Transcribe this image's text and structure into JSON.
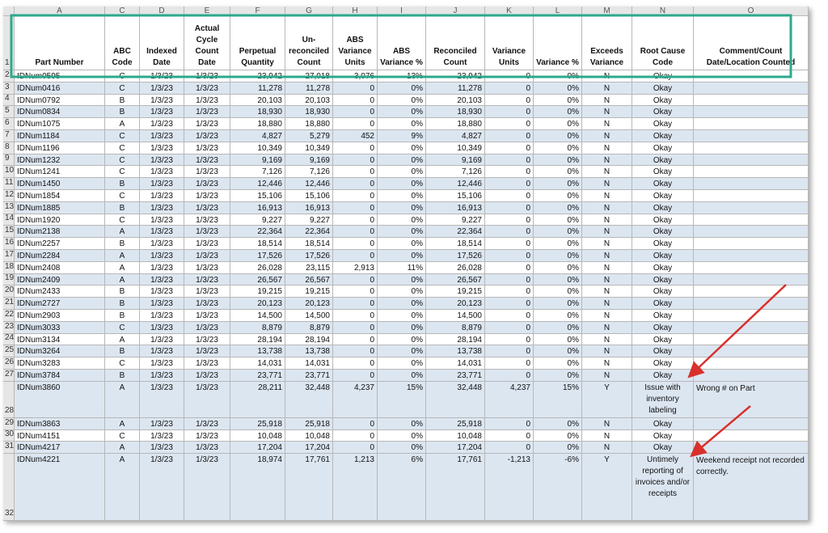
{
  "table": {
    "columns": [
      "A",
      "C",
      "D",
      "E",
      "F",
      "G",
      "H",
      "I",
      "J",
      "K",
      "L",
      "M",
      "N",
      "O"
    ],
    "header_row": "1",
    "header": [
      "Part Number",
      "ABC Code",
      "Indexed Date",
      "Actual Cycle Count Date",
      "Perpetual Quantity",
      "Un-reconciled Count",
      "ABS Variance Units",
      "ABS Variance %",
      "Reconciled Count",
      "Variance Units",
      "Variance %",
      "Exceeds Variance",
      "Root Cause Code",
      "Comment/Count Date/Location Counted"
    ],
    "rows": [
      {
        "n": "2",
        "cells": [
          "IDNum0595",
          "C",
          "1/3/23",
          "1/3/23",
          "23,942",
          "27,018",
          "3,076",
          "13%",
          "23,942",
          "0",
          "0%",
          "N",
          "Okay"
        ]
      },
      {
        "n": "3",
        "cells": [
          "IDNum0416",
          "C",
          "1/3/23",
          "1/3/23",
          "11,278",
          "11,278",
          "0",
          "0%",
          "11,278",
          "0",
          "0%",
          "N",
          "Okay"
        ]
      },
      {
        "n": "4",
        "cells": [
          "IDNum0792",
          "B",
          "1/3/23",
          "1/3/23",
          "20,103",
          "20,103",
          "0",
          "0%",
          "20,103",
          "0",
          "0%",
          "N",
          "Okay"
        ]
      },
      {
        "n": "5",
        "cells": [
          "IDNum0834",
          "B",
          "1/3/23",
          "1/3/23",
          "18,930",
          "18,930",
          "0",
          "0%",
          "18,930",
          "0",
          "0%",
          "N",
          "Okay"
        ]
      },
      {
        "n": "6",
        "cells": [
          "IDNum1075",
          "A",
          "1/3/23",
          "1/3/23",
          "18,880",
          "18,880",
          "0",
          "0%",
          "18,880",
          "0",
          "0%",
          "N",
          "Okay"
        ]
      },
      {
        "n": "7",
        "cells": [
          "IDNum1184",
          "C",
          "1/3/23",
          "1/3/23",
          "4,827",
          "5,279",
          "452",
          "9%",
          "4,827",
          "0",
          "0%",
          "N",
          "Okay"
        ]
      },
      {
        "n": "8",
        "cells": [
          "IDNum1196",
          "C",
          "1/3/23",
          "1/3/23",
          "10,349",
          "10,349",
          "0",
          "0%",
          "10,349",
          "0",
          "0%",
          "N",
          "Okay"
        ]
      },
      {
        "n": "9",
        "cells": [
          "IDNum1232",
          "C",
          "1/3/23",
          "1/3/23",
          "9,169",
          "9,169",
          "0",
          "0%",
          "9,169",
          "0",
          "0%",
          "N",
          "Okay"
        ]
      },
      {
        "n": "10",
        "cells": [
          "IDNum1241",
          "C",
          "1/3/23",
          "1/3/23",
          "7,126",
          "7,126",
          "0",
          "0%",
          "7,126",
          "0",
          "0%",
          "N",
          "Okay"
        ]
      },
      {
        "n": "11",
        "cells": [
          "IDNum1450",
          "B",
          "1/3/23",
          "1/3/23",
          "12,446",
          "12,446",
          "0",
          "0%",
          "12,446",
          "0",
          "0%",
          "N",
          "Okay"
        ]
      },
      {
        "n": "12",
        "cells": [
          "IDNum1854",
          "C",
          "1/3/23",
          "1/3/23",
          "15,106",
          "15,106",
          "0",
          "0%",
          "15,106",
          "0",
          "0%",
          "N",
          "Okay"
        ]
      },
      {
        "n": "13",
        "cells": [
          "IDNum1885",
          "B",
          "1/3/23",
          "1/3/23",
          "16,913",
          "16,913",
          "0",
          "0%",
          "16,913",
          "0",
          "0%",
          "N",
          "Okay"
        ]
      },
      {
        "n": "14",
        "cells": [
          "IDNum1920",
          "C",
          "1/3/23",
          "1/3/23",
          "9,227",
          "9,227",
          "0",
          "0%",
          "9,227",
          "0",
          "0%",
          "N",
          "Okay"
        ]
      },
      {
        "n": "15",
        "cells": [
          "IDNum2138",
          "A",
          "1/3/23",
          "1/3/23",
          "22,364",
          "22,364",
          "0",
          "0%",
          "22,364",
          "0",
          "0%",
          "N",
          "Okay"
        ]
      },
      {
        "n": "16",
        "cells": [
          "IDNum2257",
          "B",
          "1/3/23",
          "1/3/23",
          "18,514",
          "18,514",
          "0",
          "0%",
          "18,514",
          "0",
          "0%",
          "N",
          "Okay"
        ]
      },
      {
        "n": "17",
        "cells": [
          "IDNum2284",
          "A",
          "1/3/23",
          "1/3/23",
          "17,526",
          "17,526",
          "0",
          "0%",
          "17,526",
          "0",
          "0%",
          "N",
          "Okay"
        ]
      },
      {
        "n": "18",
        "cells": [
          "IDNum2408",
          "A",
          "1/3/23",
          "1/3/23",
          "26,028",
          "23,115",
          "2,913",
          "11%",
          "26,028",
          "0",
          "0%",
          "N",
          "Okay"
        ]
      },
      {
        "n": "19",
        "cells": [
          "IDNum2409",
          "A",
          "1/3/23",
          "1/3/23",
          "26,567",
          "26,567",
          "0",
          "0%",
          "26,567",
          "0",
          "0%",
          "N",
          "Okay"
        ]
      },
      {
        "n": "20",
        "cells": [
          "IDNum2433",
          "B",
          "1/3/23",
          "1/3/23",
          "19,215",
          "19,215",
          "0",
          "0%",
          "19,215",
          "0",
          "0%",
          "N",
          "Okay"
        ]
      },
      {
        "n": "21",
        "cells": [
          "IDNum2727",
          "B",
          "1/3/23",
          "1/3/23",
          "20,123",
          "20,123",
          "0",
          "0%",
          "20,123",
          "0",
          "0%",
          "N",
          "Okay"
        ]
      },
      {
        "n": "22",
        "cells": [
          "IDNum2903",
          "B",
          "1/3/23",
          "1/3/23",
          "14,500",
          "14,500",
          "0",
          "0%",
          "14,500",
          "0",
          "0%",
          "N",
          "Okay"
        ]
      },
      {
        "n": "23",
        "cells": [
          "IDNum3033",
          "C",
          "1/3/23",
          "1/3/23",
          "8,879",
          "8,879",
          "0",
          "0%",
          "8,879",
          "0",
          "0%",
          "N",
          "Okay"
        ]
      },
      {
        "n": "24",
        "cells": [
          "IDNum3134",
          "A",
          "1/3/23",
          "1/3/23",
          "28,194",
          "28,194",
          "0",
          "0%",
          "28,194",
          "0",
          "0%",
          "N",
          "Okay"
        ]
      },
      {
        "n": "25",
        "cells": [
          "IDNum3264",
          "B",
          "1/3/23",
          "1/3/23",
          "13,738",
          "13,738",
          "0",
          "0%",
          "13,738",
          "0",
          "0%",
          "N",
          "Okay"
        ]
      },
      {
        "n": "26",
        "cells": [
          "IDNum3283",
          "C",
          "1/3/23",
          "1/3/23",
          "14,031",
          "14,031",
          "0",
          "0%",
          "14,031",
          "0",
          "0%",
          "N",
          "Okay"
        ]
      },
      {
        "n": "27",
        "cells": [
          "IDNum3784",
          "B",
          "1/3/23",
          "1/3/23",
          "23,771",
          "23,771",
          "0",
          "0%",
          "23,771",
          "0",
          "0%",
          "N",
          "Okay"
        ]
      },
      {
        "n": "28",
        "cells": [
          "IDNum3860",
          "A",
          "1/3/23",
          "1/3/23",
          "28,211",
          "32,448",
          "4,237",
          "15%",
          "32,448",
          "4,237",
          "15%",
          "Y",
          "Issue with inventory labeling",
          "Wrong # on Part"
        ]
      },
      {
        "n": "29",
        "cells": [
          "IDNum3863",
          "A",
          "1/3/23",
          "1/3/23",
          "25,918",
          "25,918",
          "0",
          "0%",
          "25,918",
          "0",
          "0%",
          "N",
          "Okay"
        ]
      },
      {
        "n": "30",
        "cells": [
          "IDNum4151",
          "C",
          "1/3/23",
          "1/3/23",
          "10,048",
          "10,048",
          "0",
          "0%",
          "10,048",
          "0",
          "0%",
          "N",
          "Okay"
        ]
      },
      {
        "n": "31",
        "cells": [
          "IDNum4217",
          "A",
          "1/3/23",
          "1/3/23",
          "17,204",
          "17,204",
          "0",
          "0%",
          "17,204",
          "0",
          "0%",
          "N",
          "Okay"
        ]
      },
      {
        "n": "32",
        "cells": [
          "IDNum4221",
          "A",
          "1/3/23",
          "1/3/23",
          "18,974",
          "17,761",
          "1,213",
          "6%",
          "17,761",
          "-1,213",
          "-6%",
          "Y",
          "Untimely reporting of invoices and/or receipts",
          "Weekend receipt not recorded correctly."
        ]
      }
    ]
  }
}
